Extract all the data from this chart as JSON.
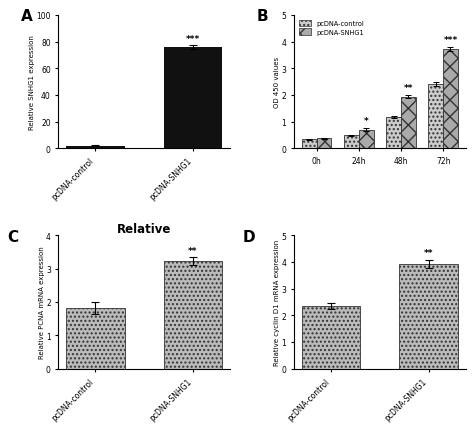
{
  "panel_A": {
    "categories": [
      "pcDNA-control",
      "pcDNA-SNHG1"
    ],
    "values": [
      2.0,
      76.0
    ],
    "errors": [
      0.3,
      1.5
    ],
    "ylabel": "Relative SNHG1 expression",
    "ylim": [
      0,
      100
    ],
    "yticks": [
      0,
      20,
      40,
      60,
      80,
      100
    ],
    "bar_color": "#111111",
    "significance": [
      "",
      "***"
    ],
    "label": "A"
  },
  "panel_B": {
    "timepoints": [
      "0h",
      "24h",
      "48h",
      "72h"
    ],
    "control_values": [
      0.33,
      0.48,
      1.17,
      2.42
    ],
    "snhg1_values": [
      0.37,
      0.7,
      1.93,
      3.72
    ],
    "control_errors": [
      0.02,
      0.03,
      0.05,
      0.08
    ],
    "snhg1_errors": [
      0.02,
      0.04,
      0.05,
      0.08
    ],
    "ylabel": "OD 450 values",
    "ylim": [
      0,
      5
    ],
    "yticks": [
      0,
      1,
      2,
      3,
      4,
      5
    ],
    "significance": [
      "",
      "*",
      "**",
      "***"
    ],
    "legend_labels": [
      "pcDNA-control",
      "pcDNA-SNHG1"
    ],
    "label": "B"
  },
  "panel_C": {
    "categories": [
      "pcDNA-control",
      "pcDNA-SNHG1"
    ],
    "values": [
      1.82,
      3.22
    ],
    "errors": [
      0.18,
      0.12
    ],
    "ylabel": "Relative PCNA mRNA expression",
    "ylim": [
      0,
      4
    ],
    "yticks": [
      0,
      1,
      2,
      3,
      4
    ],
    "significance": [
      "",
      "**"
    ],
    "title": "Relative",
    "label": "C"
  },
  "panel_D": {
    "categories": [
      "pcDNA-control",
      "pcDNA-SNHG1"
    ],
    "values": [
      2.35,
      3.92
    ],
    "errors": [
      0.12,
      0.15
    ],
    "ylabel": "Relative cyclin D1 mRNA expression",
    "ylim": [
      0,
      5
    ],
    "yticks": [
      0,
      1,
      2,
      3,
      4,
      5
    ],
    "significance": [
      "",
      "**"
    ],
    "label": "D"
  },
  "background_color": "#ffffff"
}
